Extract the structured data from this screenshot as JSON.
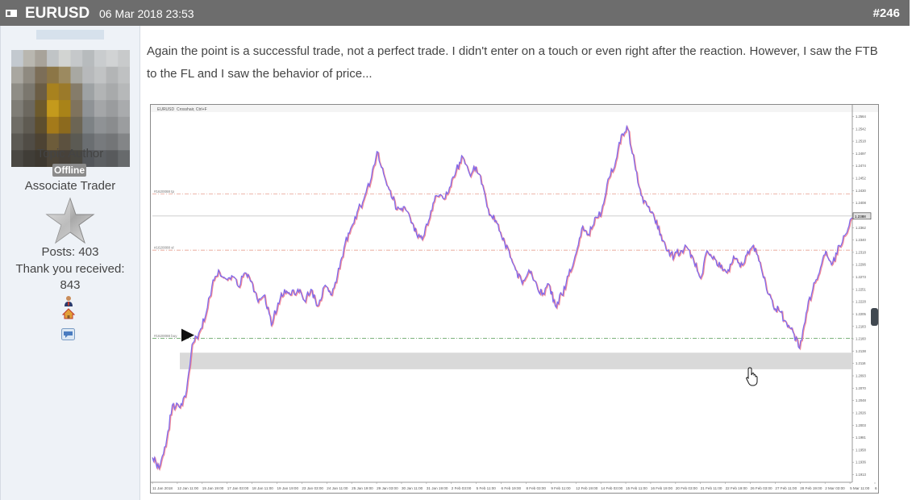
{
  "header": {
    "title": "EURUSD",
    "date": "06 Mar 2018 23:53",
    "post_number": "#246"
  },
  "user": {
    "role": "Topic Author",
    "status": "Offline",
    "rank": "Associate Trader",
    "posts": "Posts: 403",
    "thanks_label": "Thank you received:",
    "thanks_count": "843"
  },
  "post": {
    "text": "Again the point is a successful trade, not a perfect trade. I didn't enter on a touch or even right after the reaction. However, I saw the FTB to the FL and I saw the behavior of price..."
  },
  "chart_data": {
    "type": "line",
    "title": "EURUSD",
    "toolbar_text": "Crosshair, Ctrl+F",
    "x_tick_labels": [
      "11 Jan 2018",
      "12 Jan 11:00",
      "15 Jan 19:00",
      "17 Jan 03:00",
      "18 Jan 11:00",
      "19 Jan 19:00",
      "23 Jan 03:00",
      "24 Jan 11:00",
      "25 Jan 19:00",
      "29 Jan 03:00",
      "30 Jan 11:00",
      "31 Jan 19:00",
      "2 Feb 03:00",
      "5 Feb 11:00",
      "6 Feb 19:00",
      "8 Feb 03:00",
      "9 Feb 11:00",
      "12 Feb 19:00",
      "14 Feb 03:00",
      "15 Feb 11:00",
      "16 Feb 19:00",
      "20 Feb 03:00",
      "21 Feb 11:00",
      "22 Feb 19:00",
      "26 Feb 03:00",
      "27 Feb 11:00",
      "28 Feb 19:00",
      "2 Mar 03:00",
      "5 Mar 11:00",
      "6 Mar 19:00"
    ],
    "y_tick_labels": [
      "1.2564",
      "1.2542",
      "1.2518",
      "1.2497",
      "1.2474",
      "1.2452",
      "1.2430",
      "1.2408",
      "1.2385",
      "1.2362",
      "1.2340",
      "1.2318",
      "1.2296",
      "1.2273",
      "1.2251",
      "1.2228",
      "1.2205",
      "1.2183",
      "1.2160",
      "1.2138",
      "1.2116",
      "1.2093",
      "1.2070",
      "1.2048",
      "1.2026",
      "1.2003",
      "1.1981",
      "1.1958",
      "1.1936",
      "1.1913"
    ],
    "ylim": [
      1.1905,
      1.2575
    ],
    "series": [
      {
        "values": [
          1.195,
          1.193,
          1.197,
          1.2045,
          1.2042,
          1.206,
          1.2155,
          1.2175,
          1.2205,
          1.226,
          1.229,
          1.2275,
          1.228,
          1.226,
          1.2285,
          1.227,
          1.2232,
          1.2245,
          1.219,
          1.223,
          1.2255,
          1.2245,
          1.2255,
          1.2235,
          1.2255,
          1.2225,
          1.226,
          1.2245,
          1.228,
          1.233,
          1.2365,
          1.2395,
          1.2418,
          1.245,
          1.2505,
          1.2465,
          1.2435,
          1.24,
          1.2405,
          1.2385,
          1.2355,
          1.235,
          1.2385,
          1.2425,
          1.242,
          1.244,
          1.2472,
          1.2495,
          1.2465,
          1.2478,
          1.2445,
          1.239,
          1.238,
          1.2345,
          1.2325,
          1.229,
          1.2265,
          1.229,
          1.227,
          1.2245,
          1.2265,
          1.2225,
          1.2245,
          1.228,
          1.2315,
          1.2365,
          1.2355,
          1.2385,
          1.2395,
          1.2455,
          1.2478,
          1.2535,
          1.2545,
          1.2485,
          1.2425,
          1.2405,
          1.2385,
          1.2355,
          1.2325,
          1.2315,
          1.2325,
          1.233,
          1.2305,
          1.2275,
          1.2325,
          1.2315,
          1.2295,
          1.2285,
          1.2315,
          1.2295,
          1.2318,
          1.2335,
          1.2305,
          1.2255,
          1.2225,
          1.2215,
          1.2195,
          1.2178,
          1.2148,
          1.2212,
          1.2255,
          1.2285,
          1.2325,
          1.2302,
          1.2335,
          1.2355,
          1.2385
        ],
        "color": "#7b68ee"
      }
    ],
    "level_lines": [
      {
        "label": "#1620088 tp",
        "value": 1.2428,
        "color": "#e8a090"
      },
      {
        "label": "#1620088 sl",
        "value": 1.2326,
        "color": "#e8a090"
      },
      {
        "label": "#1620088 buy",
        "value": 1.2166,
        "color": "#6aa86a"
      }
    ],
    "zone": [
      1.211,
      1.214
    ],
    "price_label": "1.2388"
  },
  "colors": {
    "header_bg": "#6d6d6d",
    "sidebar_bg": "#eef2f7",
    "badge_bg": "#8b8b8b",
    "zone": "#d9d9d9"
  }
}
